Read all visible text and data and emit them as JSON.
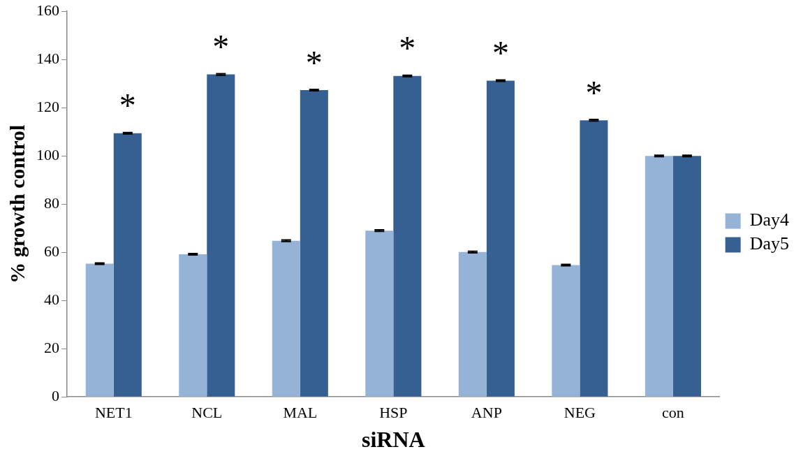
{
  "chart_data": {
    "type": "bar",
    "xlabel": "siRNA",
    "ylabel": "% growth control",
    "categories": [
      "NET1",
      "NCL",
      "MAL",
      "HSP",
      "ANP",
      "NEG",
      "con"
    ],
    "series": [
      {
        "name": "Day4",
        "color": "#95b3d7",
        "values": [
          55.3,
          59.2,
          64.8,
          69.0,
          60.1,
          54.7,
          100
        ],
        "errors": [
          0.3,
          0.3,
          0.3,
          0.3,
          0.3,
          0.3,
          0.3
        ]
      },
      {
        "name": "Day5",
        "color": "#376092",
        "values": [
          109.4,
          133.8,
          127.3,
          133.2,
          131.2,
          114.8,
          100
        ],
        "errors": [
          0.3,
          0.3,
          0.3,
          0.3,
          0.3,
          0.3,
          0.3
        ]
      }
    ],
    "ylim": [
      0,
      160
    ],
    "yticks": [
      0,
      20,
      40,
      60,
      80,
      100,
      120,
      140,
      160
    ],
    "grid": false,
    "legend": "right",
    "annotations": [
      {
        "text": "*",
        "x": "NET1",
        "y": 109.4
      },
      {
        "text": "*",
        "x": "NCL",
        "y": 133.8
      },
      {
        "text": "*",
        "x": "MAL",
        "y": 127.3
      },
      {
        "text": "*",
        "x": "HSP",
        "y": 133.2
      },
      {
        "text": "*",
        "x": "ANP",
        "y": 131.2
      },
      {
        "text": "*",
        "x": "NEG",
        "y": 114.8
      }
    ]
  }
}
